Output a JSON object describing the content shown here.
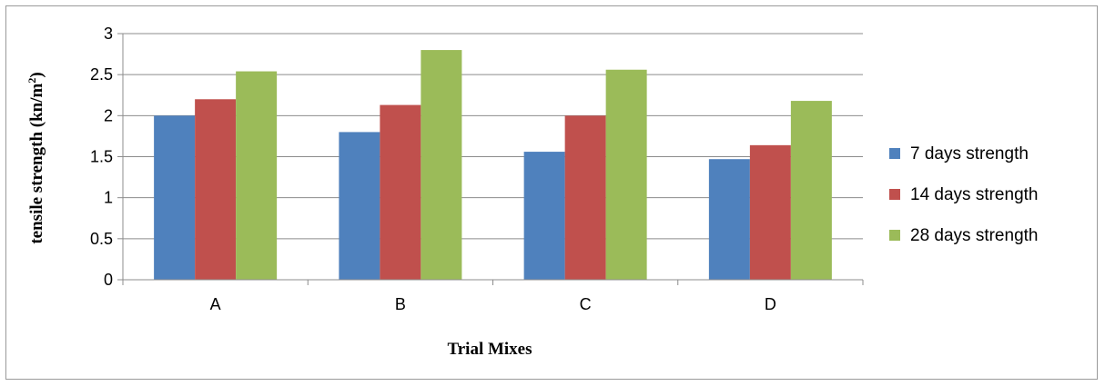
{
  "chart_data": {
    "type": "bar",
    "categories": [
      "A",
      "B",
      "C",
      "D"
    ],
    "series": [
      {
        "name": "7 days strength",
        "values": [
          2.0,
          1.8,
          1.56,
          1.47
        ],
        "color": "#4F81BD"
      },
      {
        "name": "14 days strength",
        "values": [
          2.2,
          2.13,
          2.0,
          1.64
        ],
        "color": "#C0504D"
      },
      {
        "name": "28 days strength",
        "values": [
          2.54,
          2.8,
          2.56,
          2.18
        ],
        "color": "#9BBB59"
      }
    ],
    "ylim": [
      0,
      3
    ],
    "yticks": [
      "0",
      "0.5",
      "1",
      "1.5",
      "2",
      "2.5",
      "3"
    ],
    "ytick_values": [
      0,
      0.5,
      1,
      1.5,
      2,
      2.5,
      3
    ],
    "xlabel": "Trial Mixes",
    "ylabel_main": "tensile strength (kn/m",
    "ylabel_sup": "2",
    "ylabel_end": ")",
    "grid": true,
    "legend_position": "right"
  }
}
